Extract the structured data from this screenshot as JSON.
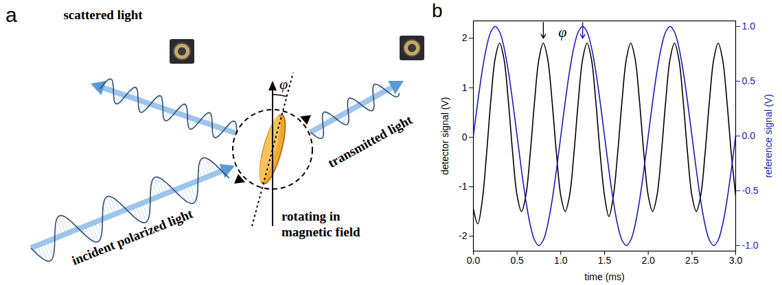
{
  "diagram": {
    "panel_label": "a",
    "labels": {
      "scattered": "scattered light",
      "transmitted": "transmitted light",
      "incident": "incident polarized light",
      "rotation": "rotating in magnetic field",
      "angle": "φ"
    }
  },
  "chart_data": {
    "panel_label": "b",
    "type": "line",
    "x_label": "time (ms)",
    "y_label": "detector signal (V)",
    "y2_label": "reference signal (V)",
    "x": [
      0,
      0.05,
      0.1,
      0.15,
      0.2,
      0.25,
      0.3,
      0.35,
      0.4,
      0.45,
      0.5,
      0.55,
      0.6,
      0.65,
      0.7,
      0.75,
      0.8,
      0.85,
      0.9,
      0.95,
      1,
      1.05,
      1.1,
      1.15,
      1.2,
      1.25,
      1.3,
      1.35,
      1.4,
      1.45,
      1.5,
      1.55,
      1.6,
      1.65,
      1.7,
      1.75,
      1.8,
      1.85,
      1.9,
      1.95,
      2,
      2.05,
      2.1,
      2.15,
      2.2,
      2.25,
      2.3,
      2.35,
      2.4,
      2.45,
      2.5,
      2.55,
      2.6,
      2.65,
      2.7,
      2.75,
      2.8,
      2.85,
      2.9,
      2.95,
      3
    ],
    "xlim": [
      0,
      3
    ],
    "xticks": [
      {
        "value": 0,
        "label": "0.0"
      },
      {
        "value": 0.5,
        "label": "0.5"
      },
      {
        "value": 1,
        "label": "1.0"
      },
      {
        "value": 1.5,
        "label": "1.5"
      },
      {
        "value": 2,
        "label": "2.0"
      },
      {
        "value": 2.5,
        "label": "2.5"
      },
      {
        "value": 3,
        "label": "3.0"
      }
    ],
    "ylim": [
      -2.3,
      2.35
    ],
    "yticks": [
      -2,
      -1,
      0,
      1,
      2
    ],
    "y2lim": [
      -1.05,
      1.05
    ],
    "y2ticks": [
      {
        "value": -1,
        "label": "-1.0"
      },
      {
        "value": -0.5,
        "label": "-0.5"
      },
      {
        "value": 0,
        "label": "0.0"
      },
      {
        "value": 0.5,
        "label": "0.5"
      },
      {
        "value": 1,
        "label": "1.0"
      }
    ],
    "series": [
      {
        "color": "#000000",
        "values": [
          -1.45,
          -1.75,
          -1.3,
          -0.35,
          0.75,
          1.6,
          1.9,
          1.58,
          0.73,
          -0.33,
          -1.18,
          -1.5,
          -1.18,
          -0.33,
          0.73,
          1.58,
          1.9,
          1.58,
          0.73,
          -0.33,
          -1.18,
          -1.5,
          -1.18,
          -0.33,
          0.73,
          1.58,
          1.9,
          1.58,
          0.73,
          -0.33,
          -1.18,
          -1.6,
          -1.2,
          -0.33,
          0.73,
          1.58,
          1.9,
          1.58,
          0.73,
          -0.33,
          -1.18,
          -1.5,
          -1.18,
          -0.33,
          0.73,
          1.58,
          1.9,
          1.58,
          0.73,
          -0.33,
          -1.18,
          -1.5,
          -1.18,
          -0.33,
          0.73,
          1.58,
          1.9,
          1.58,
          0.73,
          -0.33,
          -1.18
        ]
      },
      {
        "color": "#1a1ab8",
        "axis": "y2",
        "values": [
          0,
          0.31,
          0.59,
          0.81,
          0.95,
          1,
          0.95,
          0.81,
          0.59,
          0.31,
          0,
          -0.31,
          -0.59,
          -0.81,
          -0.95,
          -1,
          -0.95,
          -0.81,
          -0.59,
          -0.31,
          0,
          0.31,
          0.59,
          0.81,
          0.95,
          1,
          0.95,
          0.81,
          0.59,
          0.31,
          0,
          -0.31,
          -0.59,
          -0.81,
          -0.95,
          -1,
          -0.95,
          -0.81,
          -0.59,
          -0.31,
          0,
          0.31,
          0.59,
          0.81,
          0.95,
          1,
          0.95,
          0.81,
          0.59,
          0.31,
          0,
          -0.31,
          -0.59,
          -0.81,
          -0.95,
          -1,
          -0.95,
          -0.81,
          -0.59,
          -0.31,
          0
        ]
      }
    ],
    "annotations": [
      {
        "text": "φ",
        "x": 1.02,
        "y": 2.12,
        "arrows_x": [
          0.8,
          1.25
        ],
        "arrow_y": [
          2.32,
          2.0
        ]
      }
    ]
  }
}
